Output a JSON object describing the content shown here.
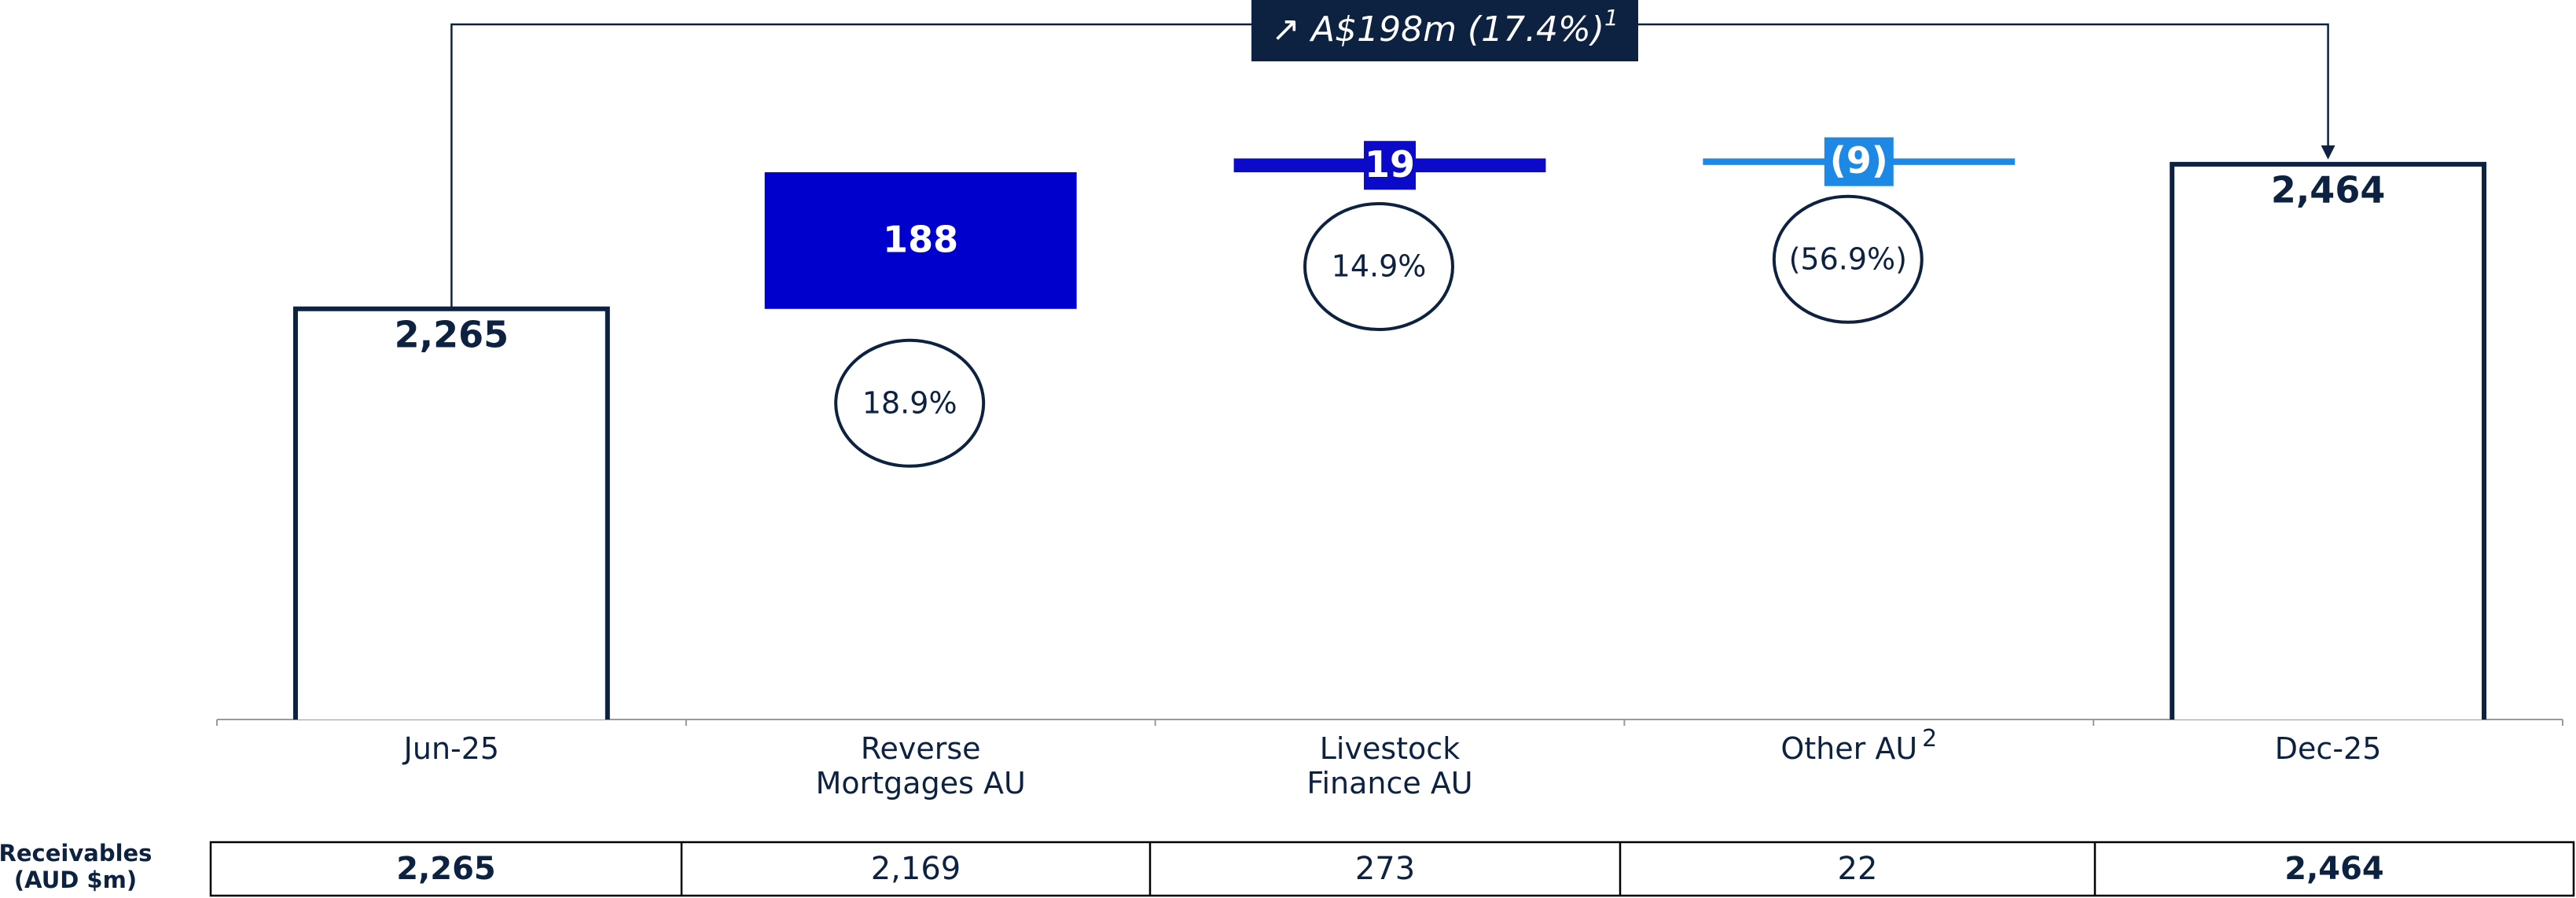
{
  "chart_data": {
    "type": "waterfall",
    "categories": [
      [
        "Jun-25"
      ],
      [
        "Reverse",
        "Mortgages AU"
      ],
      [
        "Livestock",
        "Finance AU"
      ],
      [
        "Other AU"
      ],
      [
        "Dec-25"
      ]
    ],
    "category_notes": [
      null,
      null,
      null,
      "2",
      null
    ],
    "measures": [
      "total",
      "relative",
      "relative",
      "relative",
      "total"
    ],
    "values": [
      2265,
      188,
      19,
      -9,
      2464
    ],
    "value_labels": [
      "2,265",
      "188",
      "19",
      "(9)",
      "2,464"
    ],
    "colors": [
      "#0d2240",
      "#0000cc",
      "#0a0ac8",
      "#1e88e5",
      "#0d2240"
    ],
    "growth_labels": [
      null,
      "18.9%",
      "14.9%",
      "(56.9%)",
      null
    ],
    "ylim": [
      1700,
      2690
    ],
    "annotation": {
      "text": "↗ A$198m (17.4%)",
      "note": "1"
    },
    "table": {
      "row_label": [
        "Receivables",
        "(AUD $m)"
      ],
      "values": [
        "2,265",
        "2,169",
        "273",
        "22",
        "2,464"
      ]
    }
  }
}
